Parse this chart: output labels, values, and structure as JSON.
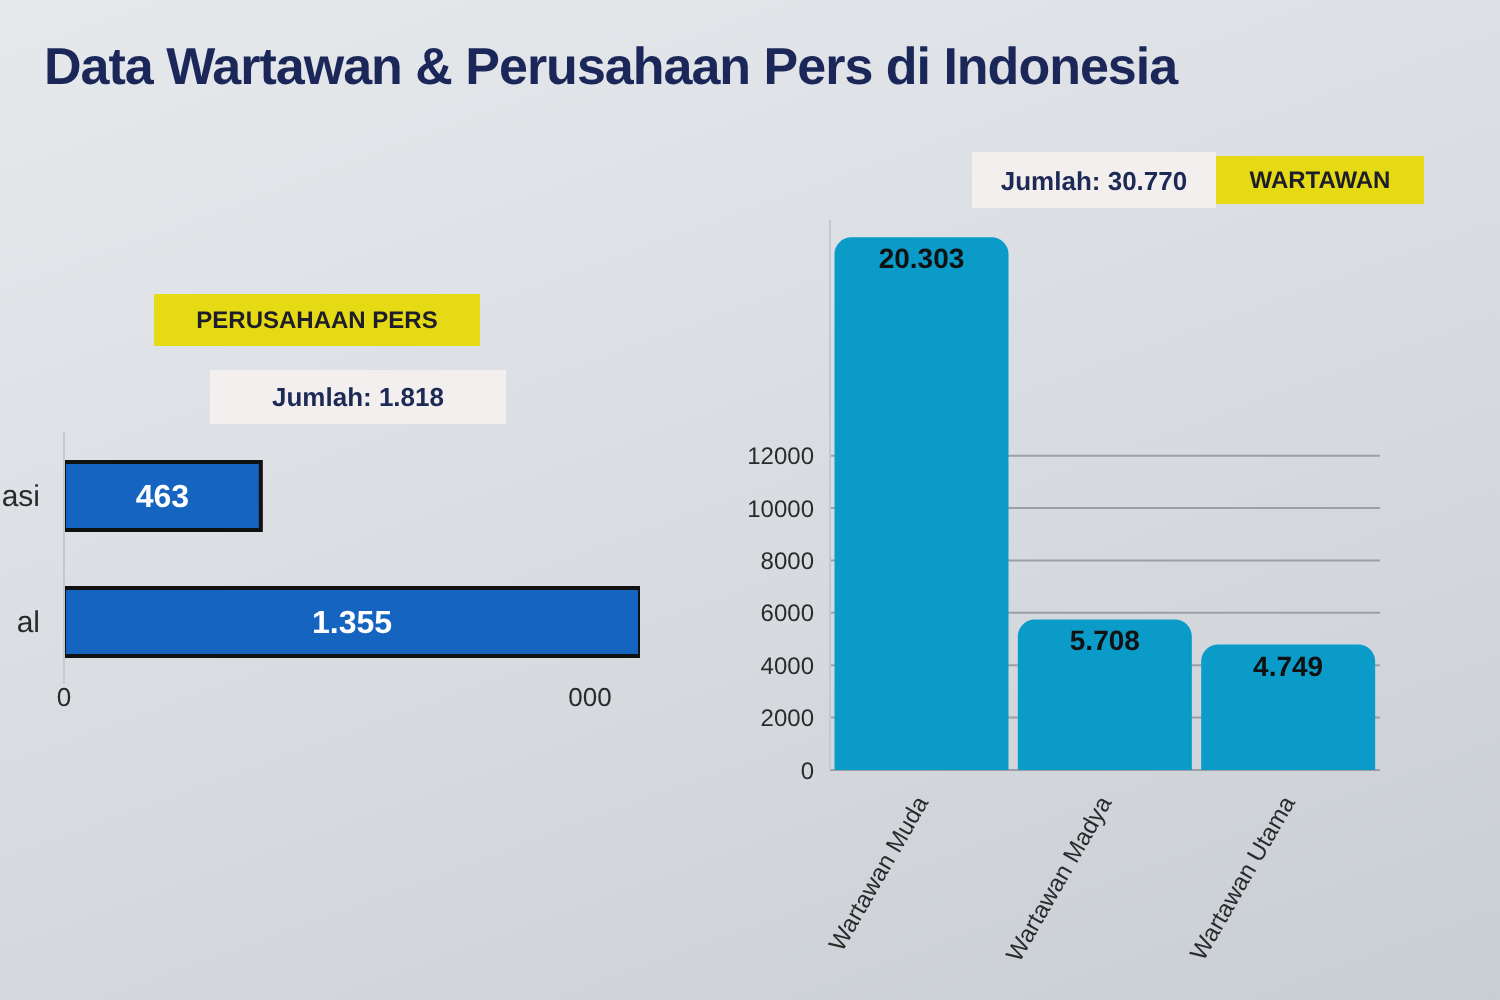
{
  "chart_data": [
    {
      "type": "bar",
      "orientation": "horizontal",
      "title": "Data Wartawan & Perusahaan Pers di Indonesia",
      "subtitle": "PERUSAHAAN PERS",
      "annotations": [
        "Jumlah: 1.818",
        "0",
        "000"
      ],
      "categories": [
        "asi",
        "al"
      ],
      "values": [
        463,
        1355
      ],
      "value_labels": [
        "463",
        "1.355"
      ],
      "color": "#1565c0"
    },
    {
      "type": "bar",
      "title": "WARTAWAN",
      "annotations": [
        "Jumlah: 30.770"
      ],
      "categories": [
        "Wartawan Muda",
        "Wartawan Madya",
        "Wartawan Utama"
      ],
      "values": [
        20303,
        5708,
        4749
      ],
      "value_labels": [
        "20.303",
        "5.708",
        "4.749"
      ],
      "color": "#0b9bc9",
      "ylim": [
        0,
        21000
      ],
      "yticks": [
        0,
        2000,
        4000,
        6000,
        8000,
        10000,
        12000
      ],
      "grid": "y"
    }
  ]
}
